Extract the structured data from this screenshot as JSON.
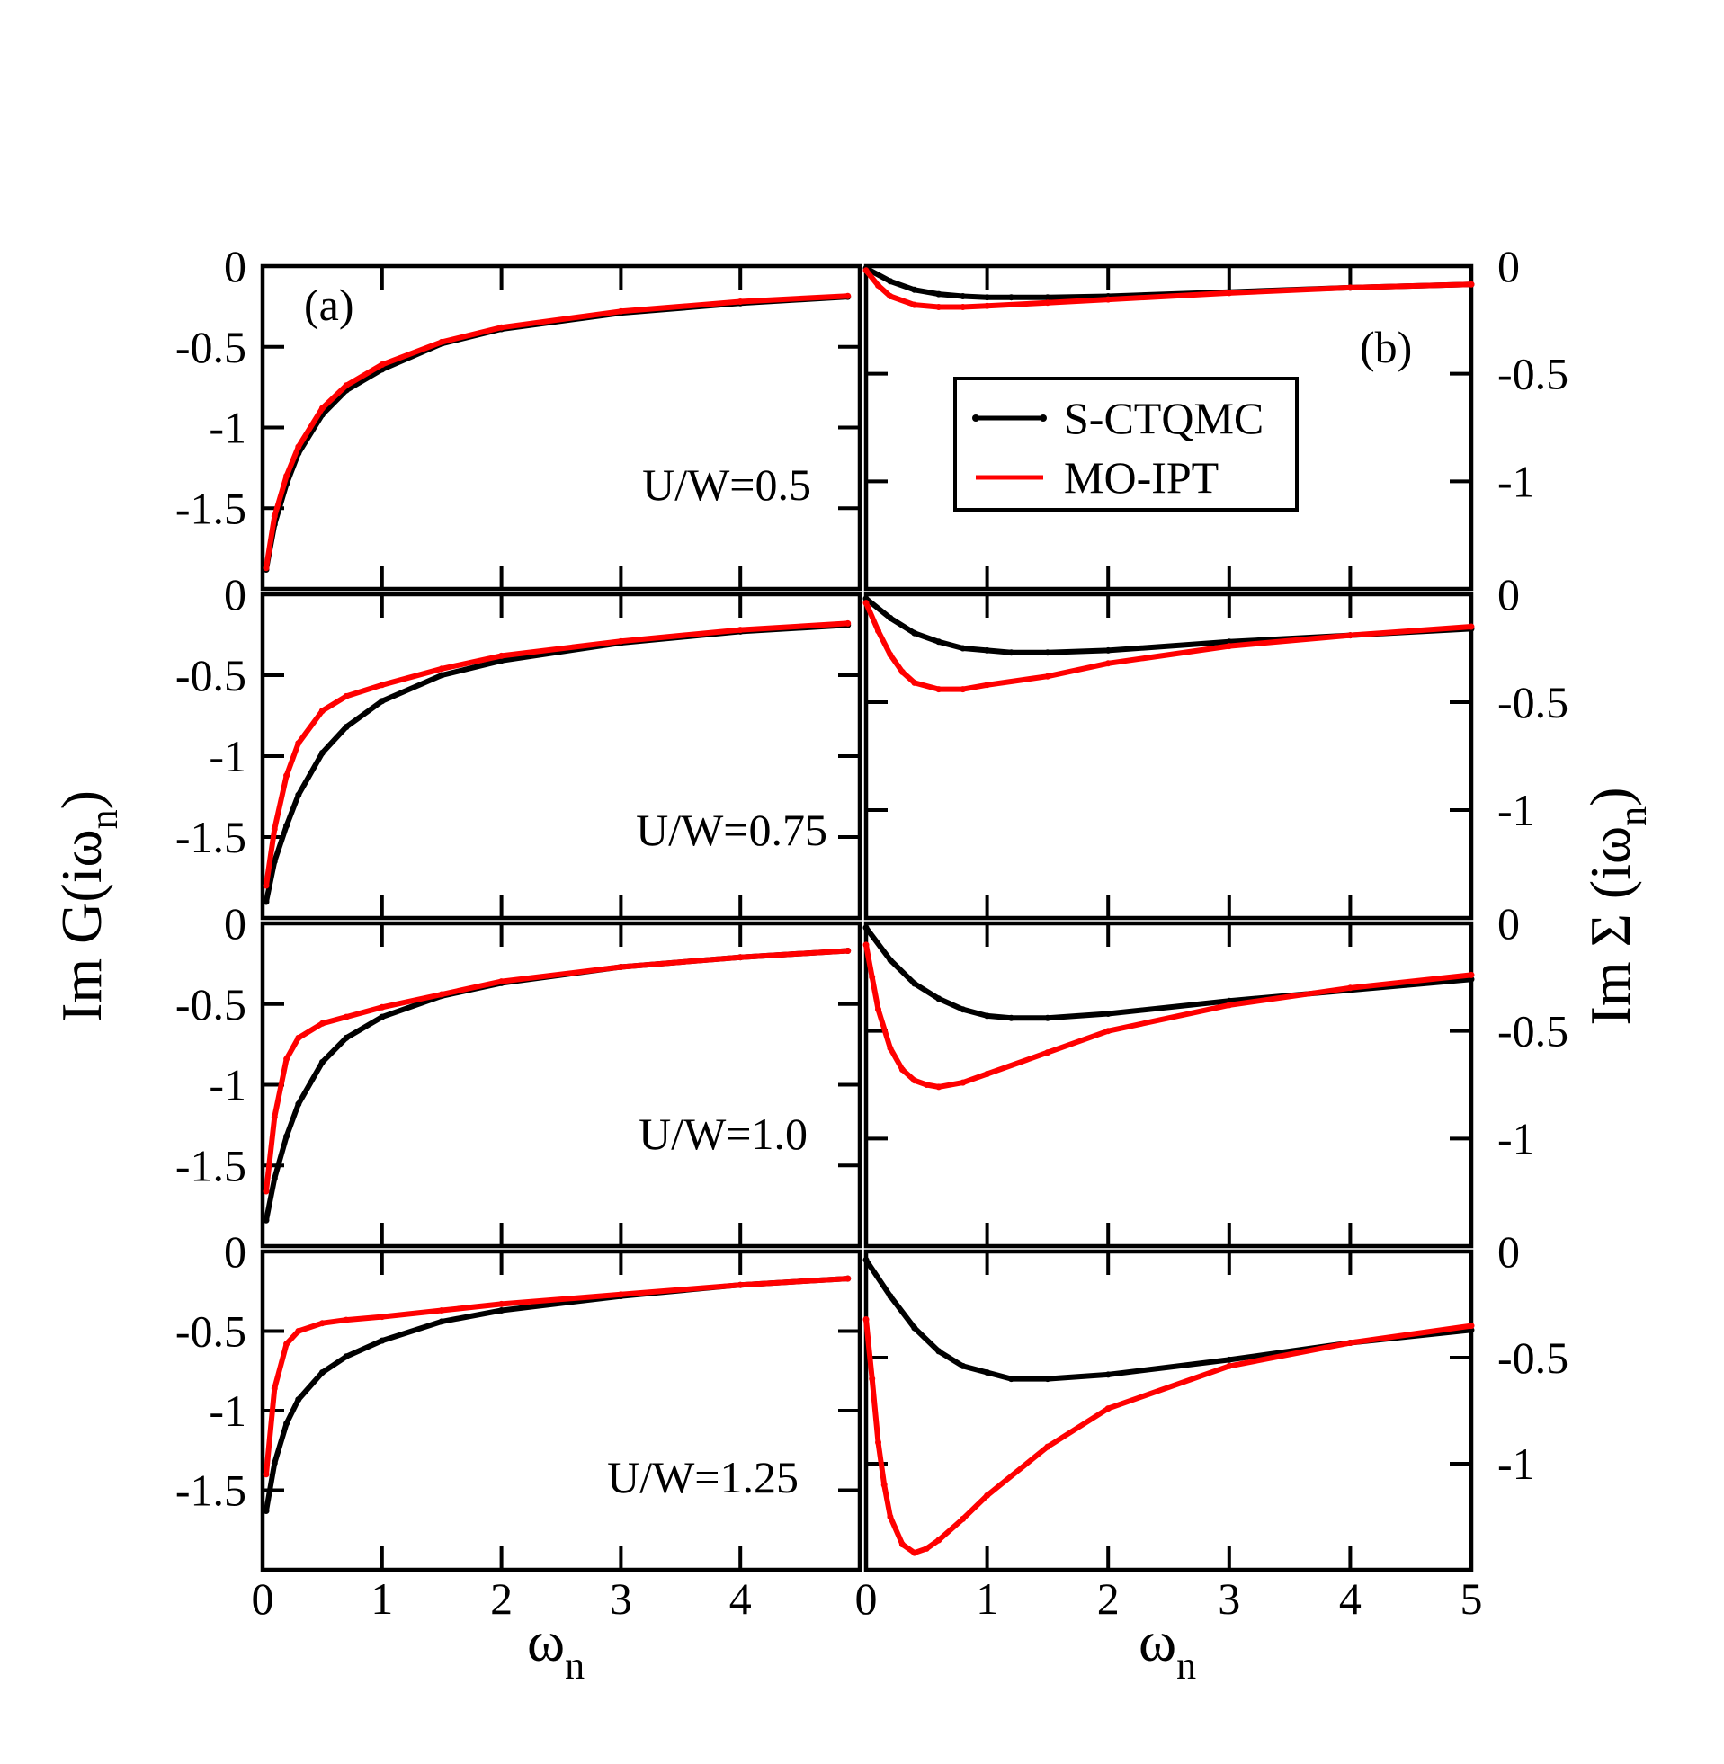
{
  "chart_data": {
    "type": "line",
    "legend": {
      "placement": "top-right of panel (b)",
      "entries": [
        {
          "name": "S-CTQMC",
          "color": "#000000"
        },
        {
          "name": "MO-IPT",
          "color": "#ff0000"
        }
      ]
    },
    "panels": [
      {
        "id": "a",
        "label": "(a)",
        "ylabel_main": "Im G(iω",
        "ylabel_sub": "n",
        "ylabel_close": ")",
        "xlabel_main": "ω",
        "xlabel_sub": "n",
        "x_ticks": [
          "0",
          "1",
          "2",
          "3",
          "4"
        ],
        "xlim": [
          0,
          5
        ],
        "rows": [
          {
            "annotation": "U/W=0.5",
            "ylim": [
              -2,
              0
            ],
            "y_ticks": [
              "0",
              "-0.5",
              "-1",
              "-1.5"
            ],
            "series": [
              {
                "name": "S-CTQMC",
                "x": [
                  0.03,
                  0.1,
                  0.2,
                  0.3,
                  0.5,
                  0.7,
                  1.0,
                  1.5,
                  2.0,
                  3.0,
                  4.0,
                  4.9
                ],
                "y": [
                  -1.88,
                  -1.6,
                  -1.35,
                  -1.16,
                  -0.92,
                  -0.77,
                  -0.64,
                  -0.48,
                  -0.39,
                  -0.29,
                  -0.23,
                  -0.19
                ]
              },
              {
                "name": "MO-IPT",
                "x": [
                  0.03,
                  0.1,
                  0.2,
                  0.3,
                  0.5,
                  0.7,
                  1.0,
                  1.5,
                  2.0,
                  3.0,
                  4.0,
                  4.9
                ],
                "y": [
                  -1.87,
                  -1.55,
                  -1.3,
                  -1.12,
                  -0.88,
                  -0.74,
                  -0.61,
                  -0.47,
                  -0.38,
                  -0.28,
                  -0.22,
                  -0.185
                ]
              }
            ]
          },
          {
            "annotation": "U/W=0.75",
            "ylim": [
              -2,
              0
            ],
            "y_ticks": [
              "0",
              "-0.5",
              "-1",
              "-1.5"
            ],
            "series": [
              {
                "name": "S-CTQMC",
                "x": [
                  0.03,
                  0.1,
                  0.2,
                  0.3,
                  0.5,
                  0.7,
                  1.0,
                  1.5,
                  2.0,
                  3.0,
                  4.0,
                  4.9
                ],
                "y": [
                  -1.9,
                  -1.65,
                  -1.43,
                  -1.24,
                  -0.98,
                  -0.82,
                  -0.66,
                  -0.5,
                  -0.41,
                  -0.3,
                  -0.23,
                  -0.19
                ]
              },
              {
                "name": "MO-IPT",
                "x": [
                  0.03,
                  0.1,
                  0.2,
                  0.3,
                  0.5,
                  0.7,
                  1.0,
                  1.5,
                  2.0,
                  3.0,
                  4.0,
                  4.9
                ],
                "y": [
                  -1.8,
                  -1.45,
                  -1.12,
                  -0.92,
                  -0.72,
                  -0.63,
                  -0.56,
                  -0.46,
                  -0.38,
                  -0.29,
                  -0.22,
                  -0.18
                ]
              }
            ]
          },
          {
            "annotation": "U/W=1.0",
            "ylim": [
              -2,
              0
            ],
            "y_ticks": [
              "0",
              "-0.5",
              "-1",
              "-1.5"
            ],
            "series": [
              {
                "name": "S-CTQMC",
                "x": [
                  0.03,
                  0.1,
                  0.2,
                  0.3,
                  0.5,
                  0.7,
                  1.0,
                  1.5,
                  2.0,
                  3.0,
                  4.0,
                  4.9
                ],
                "y": [
                  -1.84,
                  -1.58,
                  -1.32,
                  -1.12,
                  -0.86,
                  -0.71,
                  -0.58,
                  -0.45,
                  -0.37,
                  -0.27,
                  -0.21,
                  -0.17
                ]
              },
              {
                "name": "MO-IPT",
                "x": [
                  0.03,
                  0.1,
                  0.2,
                  0.3,
                  0.5,
                  0.7,
                  1.0,
                  1.5,
                  2.0,
                  3.0,
                  4.0,
                  4.9
                ],
                "y": [
                  -1.66,
                  -1.2,
                  -0.84,
                  -0.71,
                  -0.62,
                  -0.58,
                  -0.52,
                  -0.44,
                  -0.36,
                  -0.27,
                  -0.21,
                  -0.17
                ]
              }
            ]
          },
          {
            "annotation": "U/W=1.25",
            "ylim": [
              -2,
              0
            ],
            "y_ticks": [
              "0",
              "-0.5",
              "-1",
              "-1.5"
            ],
            "series": [
              {
                "name": "S-CTQMC",
                "x": [
                  0.03,
                  0.1,
                  0.2,
                  0.3,
                  0.5,
                  0.7,
                  1.0,
                  1.5,
                  2.0,
                  3.0,
                  4.0,
                  4.9
                ],
                "y": [
                  -1.63,
                  -1.33,
                  -1.08,
                  -0.93,
                  -0.76,
                  -0.66,
                  -0.56,
                  -0.44,
                  -0.37,
                  -0.28,
                  -0.21,
                  -0.17
                ]
              },
              {
                "name": "MO-IPT",
                "x": [
                  0.03,
                  0.1,
                  0.2,
                  0.3,
                  0.5,
                  0.7,
                  1.0,
                  1.5,
                  2.0,
                  3.0,
                  4.0,
                  4.9
                ],
                "y": [
                  -1.4,
                  -0.86,
                  -0.58,
                  -0.5,
                  -0.45,
                  -0.43,
                  -0.41,
                  -0.37,
                  -0.33,
                  -0.27,
                  -0.21,
                  -0.17
                ]
              }
            ]
          }
        ]
      },
      {
        "id": "b",
        "label": "(b)",
        "ylabel_main": "Im Σ (iω",
        "ylabel_sub": "n",
        "ylabel_close": ")",
        "xlabel_main": "ω",
        "xlabel_sub": "n",
        "x_ticks": [
          "0",
          "1",
          "2",
          "3",
          "4",
          "5"
        ],
        "xlim": [
          0,
          5
        ],
        "rows": [
          {
            "ylim": [
              -1.5,
              0
            ],
            "y_ticks": [
              "0",
              "-0.5",
              "-1"
            ],
            "series": [
              {
                "name": "S-CTQMC",
                "x": [
                  0.0,
                  0.2,
                  0.4,
                  0.6,
                  0.8,
                  1.0,
                  1.2,
                  1.5,
                  2.0,
                  3.0,
                  4.0,
                  5.0
                ],
                "y": [
                  -0.01,
                  -0.07,
                  -0.11,
                  -0.13,
                  -0.14,
                  -0.145,
                  -0.145,
                  -0.145,
                  -0.14,
                  -0.12,
                  -0.1,
                  -0.085
                ]
              },
              {
                "name": "MO-IPT",
                "x": [
                  0.0,
                  0.1,
                  0.2,
                  0.4,
                  0.6,
                  0.8,
                  1.0,
                  1.5,
                  2.0,
                  3.0,
                  4.0,
                  5.0
                ],
                "y": [
                  -0.02,
                  -0.09,
                  -0.14,
                  -0.18,
                  -0.19,
                  -0.19,
                  -0.185,
                  -0.17,
                  -0.155,
                  -0.125,
                  -0.1,
                  -0.085
                ]
              }
            ]
          },
          {
            "ylim": [
              -1.5,
              0
            ],
            "y_ticks": [
              "0",
              "-0.5",
              "-1"
            ],
            "series": [
              {
                "name": "S-CTQMC",
                "x": [
                  0.0,
                  0.2,
                  0.4,
                  0.6,
                  0.8,
                  1.0,
                  1.2,
                  1.5,
                  2.0,
                  3.0,
                  4.0,
                  5.0
                ],
                "y": [
                  -0.02,
                  -0.11,
                  -0.18,
                  -0.22,
                  -0.25,
                  -0.26,
                  -0.27,
                  -0.27,
                  -0.26,
                  -0.22,
                  -0.19,
                  -0.16
                ]
              },
              {
                "name": "MO-IPT",
                "x": [
                  0.0,
                  0.1,
                  0.2,
                  0.3,
                  0.4,
                  0.6,
                  0.8,
                  1.0,
                  1.5,
                  2.0,
                  3.0,
                  4.0,
                  5.0
                ],
                "y": [
                  -0.04,
                  -0.17,
                  -0.28,
                  -0.36,
                  -0.41,
                  -0.44,
                  -0.44,
                  -0.42,
                  -0.38,
                  -0.32,
                  -0.24,
                  -0.19,
                  -0.15
                ]
              }
            ]
          },
          {
            "ylim": [
              -1.5,
              0
            ],
            "y_ticks": [
              "0",
              "-0.5",
              "-1"
            ],
            "series": [
              {
                "name": "S-CTQMC",
                "x": [
                  0.0,
                  0.2,
                  0.4,
                  0.6,
                  0.8,
                  1.0,
                  1.2,
                  1.5,
                  2.0,
                  3.0,
                  4.0,
                  5.0
                ],
                "y": [
                  -0.02,
                  -0.17,
                  -0.28,
                  -0.35,
                  -0.4,
                  -0.43,
                  -0.44,
                  -0.44,
                  -0.42,
                  -0.36,
                  -0.31,
                  -0.26
                ]
              },
              {
                "name": "MO-IPT",
                "x": [
                  0.0,
                  0.05,
                  0.1,
                  0.2,
                  0.3,
                  0.4,
                  0.5,
                  0.6,
                  0.8,
                  1.0,
                  1.5,
                  2.0,
                  3.0,
                  4.0,
                  5.0
                ],
                "y": [
                  -0.1,
                  -0.25,
                  -0.4,
                  -0.58,
                  -0.68,
                  -0.73,
                  -0.75,
                  -0.76,
                  -0.74,
                  -0.7,
                  -0.6,
                  -0.5,
                  -0.38,
                  -0.3,
                  -0.24
                ]
              }
            ]
          },
          {
            "ylim": [
              -1.5,
              0
            ],
            "y_ticks": [
              "0",
              "-0.5",
              "-1"
            ],
            "series": [
              {
                "name": "S-CTQMC",
                "x": [
                  0.0,
                  0.2,
                  0.4,
                  0.6,
                  0.8,
                  1.0,
                  1.2,
                  1.5,
                  2.0,
                  3.0,
                  4.0,
                  5.0
                ],
                "y": [
                  -0.04,
                  -0.21,
                  -0.36,
                  -0.47,
                  -0.54,
                  -0.57,
                  -0.6,
                  -0.6,
                  -0.58,
                  -0.51,
                  -0.43,
                  -0.37
                ]
              },
              {
                "name": "MO-IPT",
                "x": [
                  0.0,
                  0.05,
                  0.1,
                  0.15,
                  0.2,
                  0.3,
                  0.4,
                  0.5,
                  0.6,
                  0.8,
                  1.0,
                  1.5,
                  2.0,
                  3.0,
                  4.0,
                  5.0
                ],
                "y": [
                  -0.32,
                  -0.6,
                  -0.9,
                  -1.1,
                  -1.25,
                  -1.38,
                  -1.42,
                  -1.4,
                  -1.36,
                  -1.26,
                  -1.15,
                  -0.92,
                  -0.74,
                  -0.54,
                  -0.43,
                  -0.35
                ]
              }
            ]
          }
        ]
      }
    ]
  }
}
